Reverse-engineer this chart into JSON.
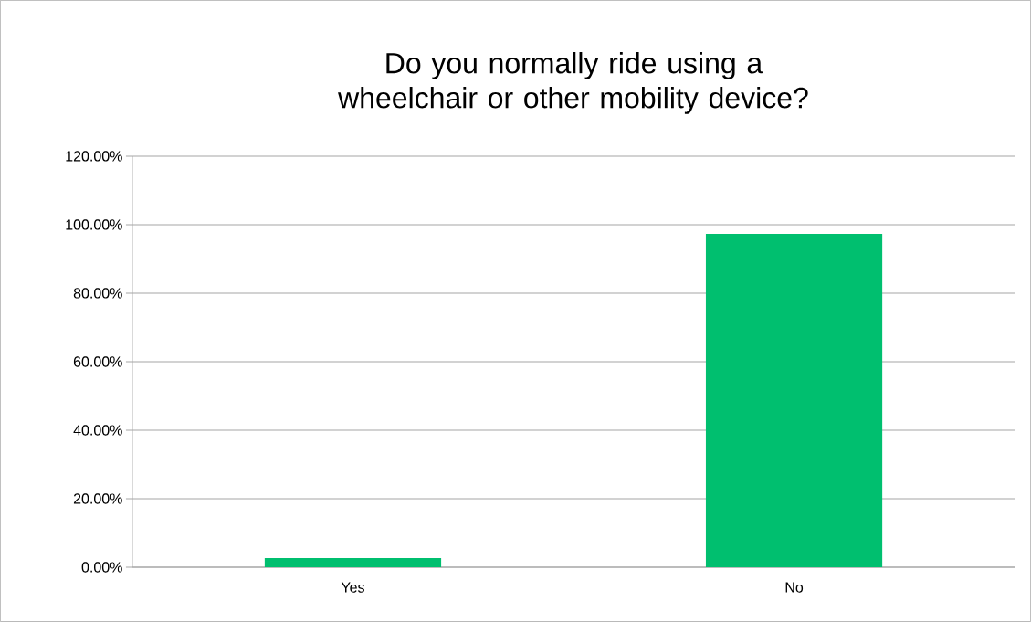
{
  "chart_data": {
    "type": "bar",
    "title": "Do you normally ride using a wheelchair or other mobility device?",
    "categories": [
      "Yes",
      "No"
    ],
    "values": [
      2.7,
      97.3
    ],
    "color": "#00bf6f",
    "ylim": [
      0,
      120
    ],
    "yticks": [
      {
        "value": 0,
        "label": "0.00%"
      },
      {
        "value": 20,
        "label": "20.00%"
      },
      {
        "value": 40,
        "label": "40.00%"
      },
      {
        "value": 60,
        "label": "60.00%"
      },
      {
        "value": 80,
        "label": "80.00%"
      },
      {
        "value": 100,
        "label": "100.00%"
      },
      {
        "value": 120,
        "label": "120.00%"
      }
    ],
    "grid": "y"
  }
}
